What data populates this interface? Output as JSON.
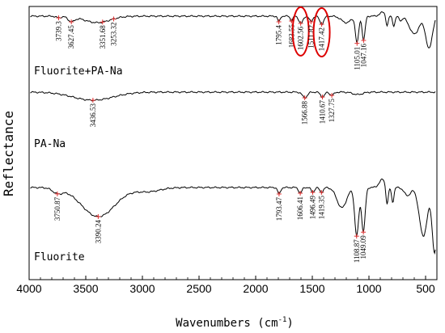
{
  "chart_data": {
    "type": "line",
    "title": "",
    "xlabel": "Wavenumbers (cm",
    "xlabel_sup": "-1",
    "xlabel_close": ")",
    "ylabel": "Reflectance",
    "xlim": [
      4000,
      400
    ],
    "x_reversed": true,
    "grid": false,
    "x_ticks": [
      4000,
      3500,
      3000,
      2500,
      2000,
      1500,
      1000,
      500
    ],
    "x_tick_labels": [
      "4000",
      "3500",
      "3000",
      "2500",
      "2000",
      "1500",
      "1000",
      "500"
    ],
    "series": [
      {
        "name": "Fluorite+PA-Na",
        "peaks": [
          {
            "x": 3739.3,
            "label": "3739.3"
          },
          {
            "x": 3627.45,
            "label": "3627.45"
          },
          {
            "x": 3351.68,
            "label": "3351.68"
          },
          {
            "x": 3253.32,
            "label": "3253.32"
          },
          {
            "x": 1795.4,
            "label": "1795.4"
          },
          {
            "x": 1683.55,
            "label": "1683.55"
          },
          {
            "x": 1602.56,
            "label": "1602.56"
          },
          {
            "x": 1511.82,
            "label": "1511.82"
          },
          {
            "x": 1417.42,
            "label": "1417.42"
          },
          {
            "x": 1105.01,
            "label": "1105.01"
          },
          {
            "x": 1047.16,
            "label": "1047.16"
          }
        ],
        "highlighted_peaks": [
          "1602.56",
          "1417.42"
        ]
      },
      {
        "name": "PA-Na",
        "peaks": [
          {
            "x": 3436.53,
            "label": "3436.53"
          },
          {
            "x": 1566.88,
            "label": "1566.88"
          },
          {
            "x": 1410.67,
            "label": "1410.67"
          },
          {
            "x": 1327.75,
            "label": "1327.75"
          }
        ]
      },
      {
        "name": "Fluorite",
        "peaks": [
          {
            "x": 3750.87,
            "label": "3750.87"
          },
          {
            "x": 3390.24,
            "label": "3390.24"
          },
          {
            "x": 1793.47,
            "label": "1793.47"
          },
          {
            "x": 1606.41,
            "label": "1606.41"
          },
          {
            "x": 1496.49,
            "label": "1496.49"
          },
          {
            "x": 1419.35,
            "label": "1419.35"
          },
          {
            "x": 1108.87,
            "label": "1108.87"
          },
          {
            "x": 1049.09,
            "label": "1049.09"
          }
        ]
      }
    ],
    "colors": {
      "line": "#000000",
      "peak_marker": "#e03030",
      "highlight_ring": "#dd0000"
    }
  }
}
